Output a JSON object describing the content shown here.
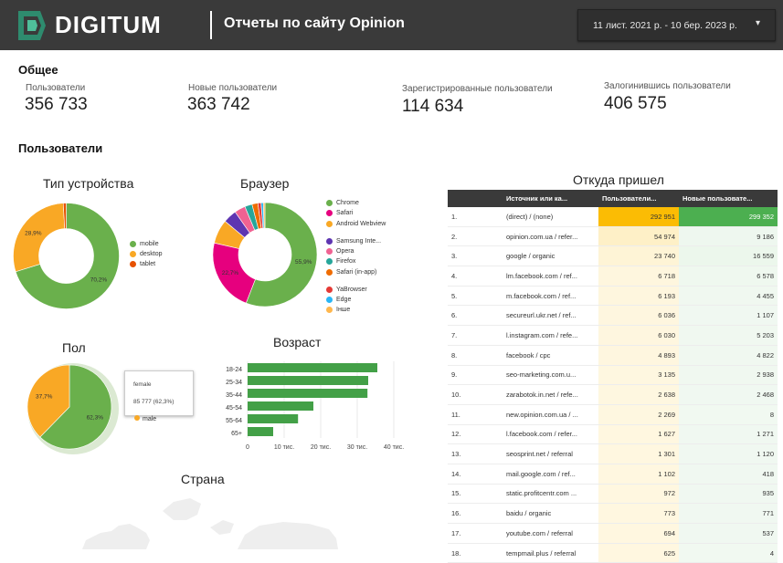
{
  "header": {
    "logo_text": "DIGITUM",
    "report_title": "Отчеты по сайту Opinion",
    "date_range": "11 лист. 2021 р. - 10 бер. 2023 р.",
    "date_dropdown_icon": "caret-down-icon"
  },
  "colors": {
    "topbar": "#3a3a3a",
    "green": "#6ab04c",
    "orange": "#f9a825",
    "pink": "#e6007e",
    "table_orange": "#fbbc04",
    "table_green": "#4caf50"
  },
  "summary": {
    "section_title": "Общее",
    "kpis": [
      {
        "label": "Пользователи",
        "value": "356 733"
      },
      {
        "label": "Новые пользователи",
        "value": "363 742"
      },
      {
        "label": "Зарегистрированные пользователи",
        "value": "114 634"
      },
      {
        "label": "Залогинившись пользователи",
        "value": "406 575"
      }
    ]
  },
  "users_section_title": "Пользователи",
  "device": {
    "title": "Тип устройства",
    "slices": [
      {
        "name": "mobile",
        "percent": 70.2,
        "label": "70,2%",
        "color": "#6ab04c"
      },
      {
        "name": "desktop",
        "percent": 28.9,
        "label": "28,9%",
        "color": "#f9a825"
      },
      {
        "name": "tablet",
        "percent": 0.9,
        "label": "",
        "color": "#e65100"
      }
    ]
  },
  "browser": {
    "title": "Браузер",
    "slices": [
      {
        "name": "Chrome",
        "percent": 55.9,
        "label": "55,9%",
        "color": "#6ab04c"
      },
      {
        "name": "Safari",
        "percent": 22.7,
        "label": "22,7%",
        "color": "#e6007e"
      },
      {
        "name": "Android Webview",
        "percent": 7.5,
        "label": "",
        "color": "#f9a825"
      },
      {
        "name": "Samsung Inte...",
        "percent": 4.2,
        "label": "",
        "color": "#5e35b1"
      },
      {
        "name": "Opera",
        "percent": 3.4,
        "label": "",
        "color": "#f06292"
      },
      {
        "name": "Firefox",
        "percent": 2.3,
        "label": "",
        "color": "#26a69a"
      },
      {
        "name": "Safari (in-app)",
        "percent": 1.8,
        "label": "",
        "color": "#ef6c00"
      },
      {
        "name": "YaBrowser",
        "percent": 1.0,
        "label": "",
        "color": "#e53935"
      },
      {
        "name": "Edge",
        "percent": 0.7,
        "label": "",
        "color": "#29b6f6"
      },
      {
        "name": "Інше",
        "percent": 0.5,
        "label": "",
        "color": "#ffb74d"
      }
    ]
  },
  "gender": {
    "title": "Пол",
    "slices": [
      {
        "name": "female",
        "percent": 62.3,
        "label": "62,3%",
        "color": "#6ab04c"
      },
      {
        "name": "male",
        "percent": 37.7,
        "label": "37,7%",
        "color": "#f9a825"
      }
    ],
    "tooltip": {
      "name": "female",
      "value": "85 777 (62,3%)"
    },
    "legend_partial": "male"
  },
  "age": {
    "title": "Возраст",
    "chart_data": {
      "type": "bar",
      "orientation": "horizontal",
      "categories": [
        "18-24",
        "25-34",
        "35-44",
        "45-54",
        "55-64",
        "65+"
      ],
      "values": [
        35500,
        33000,
        32800,
        18000,
        13800,
        7000
      ],
      "xlim": [
        0,
        40000
      ],
      "ticks": [
        "0",
        "10 тис.",
        "20 тис.",
        "30 тис.",
        "40 тис."
      ],
      "color": "#43a047",
      "grid": true
    }
  },
  "country_title": "Страна",
  "sources": {
    "title": "Откуда пришел",
    "columns": [
      "",
      "Источник или ка...",
      "Пользователи...",
      "Новые пользовате..."
    ],
    "rows": [
      {
        "idx": "1.",
        "src": "(direct) / (none)",
        "users": "292 951",
        "new": "299 352"
      },
      {
        "idx": "2.",
        "src": "opinion.com.ua / refer...",
        "users": "54 974",
        "new": "9 186"
      },
      {
        "idx": "3.",
        "src": "google / organic",
        "users": "23 740",
        "new": "16 559"
      },
      {
        "idx": "4.",
        "src": "lm.facebook.com / ref...",
        "users": "6 718",
        "new": "6 578"
      },
      {
        "idx": "5.",
        "src": "m.facebook.com / ref...",
        "users": "6 193",
        "new": "4 455"
      },
      {
        "idx": "6.",
        "src": "secureurl.ukr.net / ref...",
        "users": "6 036",
        "new": "1 107"
      },
      {
        "idx": "7.",
        "src": "l.instagram.com / refe...",
        "users": "6 030",
        "new": "5 203"
      },
      {
        "idx": "8.",
        "src": "facebook / cpc",
        "users": "4 893",
        "new": "4 822"
      },
      {
        "idx": "9.",
        "src": "seo-marketing.com.u...",
        "users": "3 135",
        "new": "2 938"
      },
      {
        "idx": "10.",
        "src": "zarabotok.in.net / refe...",
        "users": "2 638",
        "new": "2 468"
      },
      {
        "idx": "11.",
        "src": "new.opinion.com.ua / ...",
        "users": "2 269",
        "new": "8"
      },
      {
        "idx": "12.",
        "src": "l.facebook.com / refer...",
        "users": "1 627",
        "new": "1 271"
      },
      {
        "idx": "13.",
        "src": "seosprint.net / referral",
        "users": "1 301",
        "new": "1 120"
      },
      {
        "idx": "14.",
        "src": "mail.google.com / ref...",
        "users": "1 102",
        "new": "418"
      },
      {
        "idx": "15.",
        "src": "static.profitcentr.com ...",
        "users": "972",
        "new": "935"
      },
      {
        "idx": "16.",
        "src": "baidu / organic",
        "users": "773",
        "new": "771"
      },
      {
        "idx": "17.",
        "src": "youtube.com / referral",
        "users": "694",
        "new": "537"
      },
      {
        "idx": "18.",
        "src": "tempmail.plus / referral",
        "users": "625",
        "new": "4"
      }
    ]
  }
}
